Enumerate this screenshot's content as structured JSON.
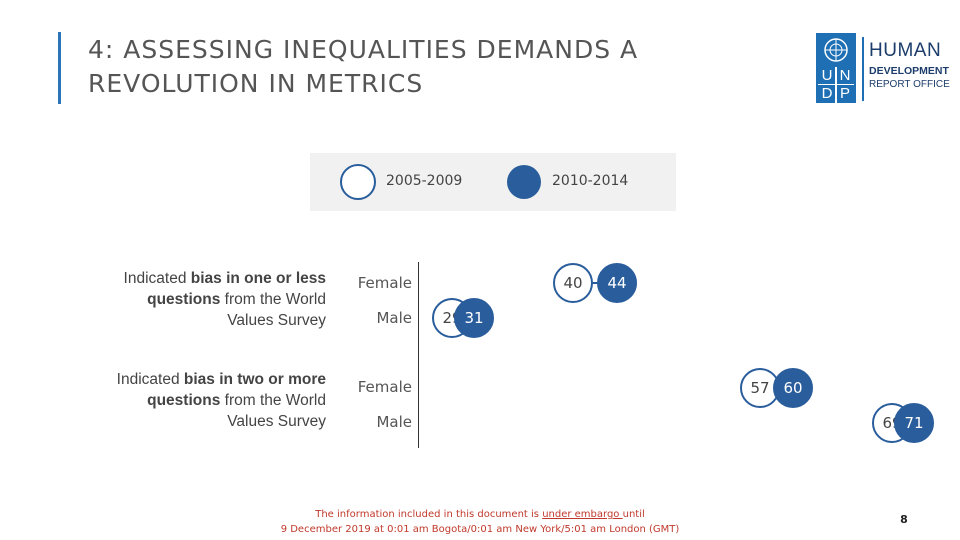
{
  "header": {
    "title": "4: ASSESSING INEQUALITIES DEMANDS A REVOLUTION IN METRICS"
  },
  "logo": {
    "grid_letters": [
      "U",
      "N",
      "D",
      "P"
    ],
    "line1": "HUMAN",
    "line2": "DEVELOPMENT",
    "line3": "REPORT OFFICE"
  },
  "chart_data": {
    "type": "scatter",
    "title": "",
    "legend": {
      "placement": "top",
      "entries": [
        {
          "name": "2005-2009",
          "style": "open-circle"
        },
        {
          "name": "2010-2014",
          "style": "filled-circle"
        }
      ]
    },
    "groups": [
      {
        "label_pre": "Indicated ",
        "label_bold": "bias in one or less questions",
        "label_post": " from the World Values Survey",
        "rows": [
          {
            "category": "Female",
            "p2005_2009": 40,
            "p2010_2014": 44
          },
          {
            "category": "Male",
            "p2005_2009": 29,
            "p2010_2014": 31
          }
        ]
      },
      {
        "label_pre": "Indicated ",
        "label_bold": "bias in two or more questions",
        "label_post": " from the World Values Survey",
        "rows": [
          {
            "category": "Female",
            "p2005_2009": 57,
            "p2010_2014": 60
          },
          {
            "category": "Male",
            "p2005_2009": 69,
            "p2010_2014": 71
          }
        ]
      }
    ],
    "colors": {
      "series": "#2a5d9c",
      "open_fill": "#ffffff"
    },
    "grid": false
  },
  "footer": {
    "embargo_line1_pre": "The information included in this document is ",
    "embargo_line1_u": "under embargo ",
    "embargo_line1_post": "until",
    "embargo_line2": "9 December 2019 at 0:01 am Bogota/0:01 am New York/5:01 am London (GMT)",
    "page_number": "8"
  }
}
